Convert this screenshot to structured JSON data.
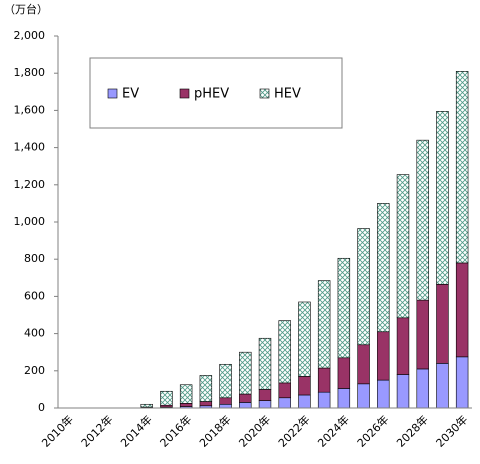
{
  "chart_data": {
    "type": "stacked_bar",
    "y_unit": "（万台）",
    "categories": [
      "2010年",
      null,
      "2012年",
      null,
      "2014年",
      null,
      "2016年",
      null,
      "2018年",
      null,
      "2020年",
      null,
      "2022年",
      null,
      "2024年",
      null,
      "2026年",
      null,
      "2028年",
      null,
      "2030年"
    ],
    "series": [
      {
        "name": "EV",
        "color": "#9999ff",
        "values": [
          0,
          0,
          0,
          0,
          2,
          5,
          8,
          12,
          20,
          30,
          40,
          55,
          70,
          85,
          105,
          130,
          150,
          180,
          210,
          240,
          275
        ]
      },
      {
        "name": "pHEV",
        "color": "#993366",
        "values": [
          0,
          0,
          0,
          0,
          3,
          10,
          17,
          23,
          35,
          45,
          60,
          80,
          100,
          130,
          165,
          210,
          260,
          305,
          370,
          425,
          505
        ]
      },
      {
        "name": "HEV",
        "color": "#4f9a87",
        "hatch": true,
        "values": [
          0,
          0,
          0,
          0,
          15,
          75,
          100,
          140,
          180,
          225,
          275,
          335,
          400,
          470,
          535,
          625,
          690,
          770,
          860,
          930,
          1030
        ]
      }
    ],
    "ylim": [
      0,
      2000
    ],
    "yticks": [
      0,
      200,
      400,
      600,
      800,
      {
        "value": 1000,
        "label": "1,000"
      },
      {
        "value": 1200,
        "label": "1,200"
      },
      {
        "value": 1400,
        "label": "1,400"
      },
      {
        "value": 1600,
        "label": "1,600"
      },
      {
        "value": 1800,
        "label": "1,800"
      },
      {
        "value": 2000,
        "label": "2,000"
      }
    ],
    "grid": false,
    "legend": "top-left"
  }
}
